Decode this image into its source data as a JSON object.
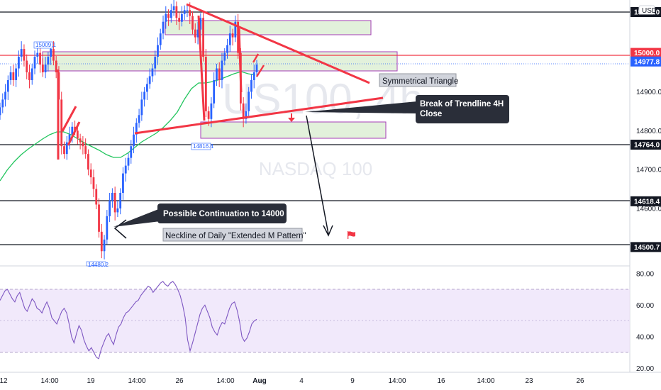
{
  "chart_data": [
    {
      "type": "candlestick",
      "symbol_watermark": "US100, 4h",
      "watermark_sub": "NASDAQ 100",
      "currency": "USD",
      "y_ticks": [
        "15100.0",
        "14900.0",
        "14800.0",
        "14700.0",
        "14600.0"
      ],
      "price_tags": [
        {
          "label": "15105.0",
          "value": 15105.0,
          "style": "dark"
        },
        {
          "label": "15000.0",
          "value": 15000.0,
          "style": "red"
        },
        {
          "label": "14977.8",
          "value": 14977.8,
          "style": "blue"
        },
        {
          "label": "14764.0",
          "value": 14764.0,
          "style": "dark"
        },
        {
          "label": "14618.4",
          "value": 14618.4,
          "style": "dark"
        },
        {
          "label": "14500.7",
          "value": 14500.7,
          "style": "dark"
        }
      ],
      "x_ticks": [
        "12",
        "14:00",
        "19",
        "14:00",
        "26",
        "14:00",
        "Aug",
        "4",
        "9",
        "14:00",
        "16",
        "14:00",
        "23",
        "26"
      ],
      "extreme_labels": [
        "15009.1",
        "14816.4",
        "14480.2"
      ],
      "annotations": {
        "symmetrical_triangle": "Symmetrical Triangle",
        "break_trendline_line1": "Break of Trendline 4H",
        "break_trendline_line2": "Close",
        "continuation": "Possible Continuation to 14000",
        "neckline": "Neckline of Daily \"Extended M Pattern\""
      },
      "colors": {
        "up": "#2962ff",
        "down": "#f23645",
        "ma": "#22c55e",
        "trend": "#f23645",
        "zone": "#dff0d8",
        "zone_border": "#9c27b0"
      }
    },
    {
      "type": "line",
      "name": "RSI",
      "y_ticks": [
        "80.00",
        "60.00",
        "40.00",
        "20.00"
      ],
      "ylim": [
        20,
        85
      ],
      "band": [
        30,
        70
      ],
      "values": [
        63,
        66,
        69,
        70,
        67,
        64,
        62,
        66,
        68,
        63,
        58,
        56,
        60,
        64,
        62,
        58,
        57,
        55,
        59,
        62,
        58,
        52,
        50,
        48,
        52,
        56,
        58,
        55,
        48,
        40,
        36,
        42,
        47,
        44,
        38,
        34,
        31,
        33,
        30,
        27,
        26,
        32,
        36,
        40,
        42,
        38,
        35,
        41,
        46,
        48,
        52,
        55,
        56,
        58,
        60,
        62,
        63,
        66,
        68,
        70,
        72,
        71,
        68,
        70,
        72,
        74,
        75,
        73,
        72,
        74,
        75,
        73,
        70,
        66,
        60,
        52,
        38,
        31,
        36,
        42,
        48,
        54,
        58,
        60,
        56,
        52,
        46,
        43,
        41,
        46,
        49,
        48,
        53,
        58,
        61,
        62,
        57,
        50,
        40,
        37,
        39,
        43,
        48,
        50,
        51
      ]
    }
  ]
}
